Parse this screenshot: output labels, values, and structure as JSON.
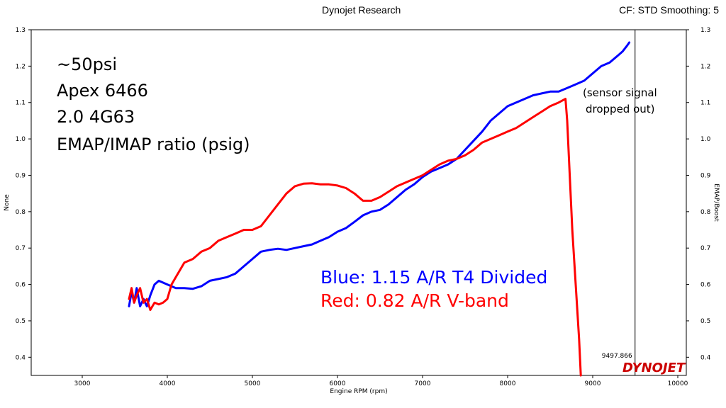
{
  "header": {
    "center_title": "Dynojet Research",
    "right_info": "CF: STD Smoothing: 5"
  },
  "logo_text": "DYNOJET",
  "chart_data": {
    "type": "line",
    "xlabel": "Engine RPM  (rpm)",
    "ylabel_left": "None",
    "ylabel_right": "EMAP/Boost",
    "xlim": [
      2400,
      10100
    ],
    "ylim": [
      0.35,
      1.3
    ],
    "x_ticks": [
      3000,
      4000,
      5000,
      6000,
      7000,
      8000,
      9000,
      10000
    ],
    "y_ticks": [
      0.4,
      0.5,
      0.6,
      0.7,
      0.8,
      0.9,
      1.0,
      1.1,
      1.2,
      1.3
    ],
    "y_tick_labels": [
      "0.4",
      "0.5",
      "0.6",
      "0.7",
      "0.8",
      "0.9",
      "1.0",
      "1.1",
      "1.2",
      "1.3"
    ],
    "grid": false,
    "cursor": {
      "x": 9497.866,
      "label": "9497.866"
    },
    "annotations": {
      "setup_lines": [
        "~50psi",
        "Apex 6466",
        "2.0 4G63",
        "EMAP/IMAP ratio (psig)"
      ],
      "blue_label": "Blue: 1.15 A/R T4 Divided",
      "red_label": "Red:  0.82 A/R V-band",
      "dropout_lines": [
        "(sensor signal",
        "dropped out)"
      ]
    },
    "series": [
      {
        "color": "#0000ff",
        "x": [
          3550,
          3580,
          3610,
          3640,
          3680,
          3720,
          3760,
          3800,
          3850,
          3900,
          4000,
          4100,
          4200,
          4300,
          4400,
          4500,
          4600,
          4700,
          4800,
          4900,
          5000,
          5100,
          5200,
          5300,
          5400,
          5500,
          5600,
          5700,
          5800,
          5900,
          6000,
          6100,
          6200,
          6300,
          6400,
          6500,
          6600,
          6700,
          6800,
          6900,
          7000,
          7100,
          7200,
          7300,
          7400,
          7500,
          7600,
          7700,
          7800,
          7900,
          8000,
          8100,
          8200,
          8300,
          8400,
          8500,
          8600,
          8700,
          8800,
          8900,
          9000,
          9100,
          9200,
          9300,
          9350,
          9400,
          9430
        ],
        "values": [
          0.54,
          0.58,
          0.55,
          0.59,
          0.54,
          0.56,
          0.54,
          0.57,
          0.6,
          0.61,
          0.6,
          0.59,
          0.59,
          0.588,
          0.595,
          0.61,
          0.615,
          0.62,
          0.63,
          0.65,
          0.67,
          0.69,
          0.695,
          0.698,
          0.695,
          0.7,
          0.705,
          0.71,
          0.72,
          0.73,
          0.745,
          0.755,
          0.772,
          0.79,
          0.8,
          0.805,
          0.82,
          0.84,
          0.86,
          0.875,
          0.895,
          0.91,
          0.92,
          0.93,
          0.945,
          0.97,
          0.995,
          1.02,
          1.05,
          1.07,
          1.09,
          1.1,
          1.11,
          1.12,
          1.125,
          1.13,
          1.13,
          1.14,
          1.15,
          1.16,
          1.18,
          1.2,
          1.21,
          1.23,
          1.24,
          1.255,
          1.265
        ]
      },
      {
        "color": "#ff0000",
        "x": [
          3550,
          3580,
          3610,
          3640,
          3680,
          3720,
          3760,
          3800,
          3850,
          3900,
          3950,
          4000,
          4050,
          4100,
          4150,
          4200,
          4300,
          4400,
          4500,
          4600,
          4700,
          4800,
          4900,
          5000,
          5100,
          5200,
          5300,
          5400,
          5500,
          5600,
          5700,
          5800,
          5900,
          6000,
          6100,
          6200,
          6300,
          6400,
          6500,
          6600,
          6700,
          6800,
          6900,
          7000,
          7100,
          7200,
          7300,
          7400,
          7500,
          7600,
          7700,
          7800,
          7900,
          8000,
          8100,
          8200,
          8300,
          8400,
          8500,
          8600,
          8680,
          8700,
          8730,
          8760,
          8800,
          8840,
          8860
        ],
        "values": [
          0.56,
          0.59,
          0.55,
          0.57,
          0.59,
          0.55,
          0.56,
          0.53,
          0.55,
          0.545,
          0.55,
          0.56,
          0.6,
          0.62,
          0.64,
          0.66,
          0.67,
          0.69,
          0.7,
          0.72,
          0.73,
          0.74,
          0.75,
          0.75,
          0.76,
          0.79,
          0.82,
          0.85,
          0.87,
          0.877,
          0.878,
          0.875,
          0.875,
          0.872,
          0.865,
          0.85,
          0.83,
          0.83,
          0.84,
          0.855,
          0.87,
          0.88,
          0.89,
          0.9,
          0.915,
          0.93,
          0.94,
          0.945,
          0.955,
          0.97,
          0.99,
          1.0,
          1.01,
          1.02,
          1.03,
          1.045,
          1.06,
          1.075,
          1.09,
          1.1,
          1.11,
          1.05,
          0.9,
          0.75,
          0.6,
          0.45,
          0.35
        ]
      }
    ]
  }
}
